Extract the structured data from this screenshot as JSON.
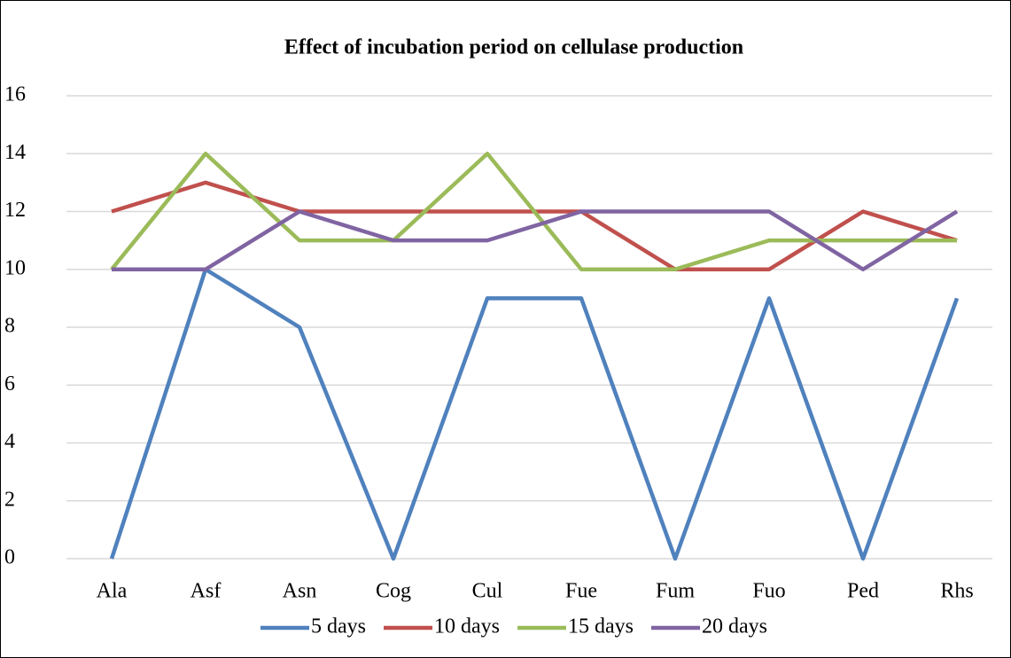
{
  "chart_data": {
    "type": "line",
    "title": "Effect of incubation period on cellulase production",
    "categories": [
      "Ala",
      "Asf",
      "Asn",
      "Cog",
      "Cul",
      "Fue",
      "Fum",
      "Fuo",
      "Ped",
      "Rhs"
    ],
    "series": [
      {
        "name": "5 days",
        "color": "#4f81bd",
        "values": [
          0,
          10,
          8,
          0,
          9,
          9,
          0,
          9,
          0,
          9
        ]
      },
      {
        "name": "10 days",
        "color": "#c0504d",
        "values": [
          12,
          13,
          12,
          12,
          12,
          12,
          10,
          10,
          12,
          11
        ]
      },
      {
        "name": "15 days",
        "color": "#9bbb59",
        "values": [
          10,
          14,
          11,
          11,
          14,
          10,
          10,
          11,
          11,
          11
        ]
      },
      {
        "name": "20 days",
        "color": "#8064a2",
        "values": [
          10,
          10,
          12,
          11,
          11,
          12,
          12,
          12,
          10,
          12
        ]
      }
    ],
    "ylim": [
      0,
      16
    ],
    "yticks": [
      0,
      2,
      4,
      6,
      8,
      10,
      12,
      14,
      16
    ],
    "grid": true,
    "legend": "bottom"
  }
}
